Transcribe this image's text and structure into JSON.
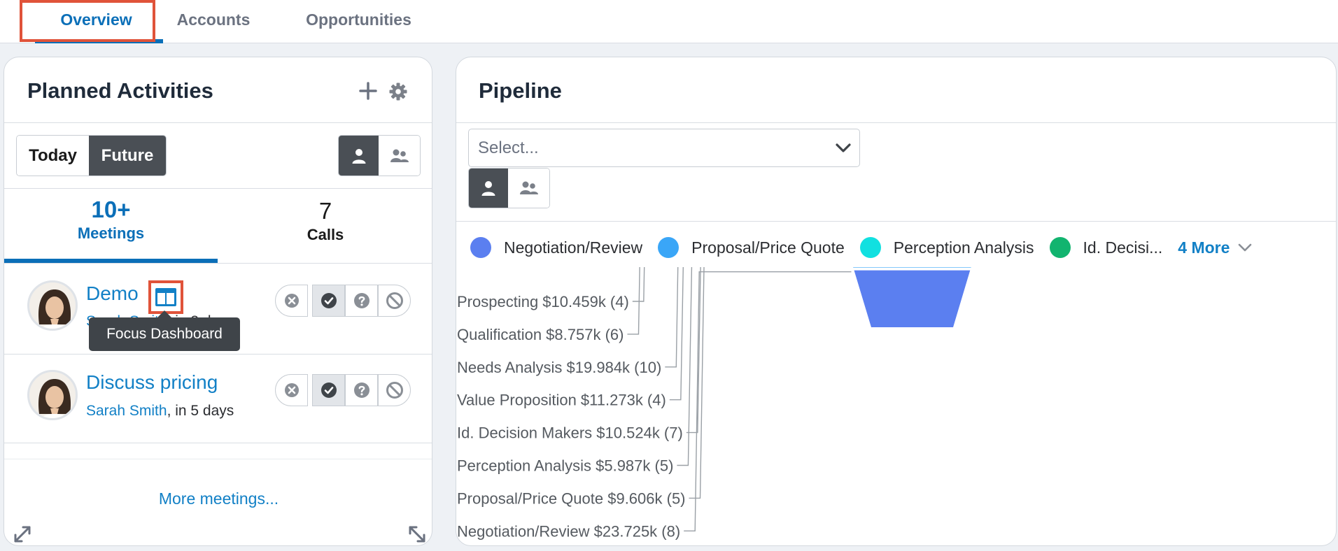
{
  "tabs": [
    {
      "label": "Overview",
      "active": true
    },
    {
      "label": "Accounts",
      "active": false
    },
    {
      "label": "Opportunities",
      "active": false
    }
  ],
  "planned_activities": {
    "title": "Planned Activities",
    "add_icon": "plus-icon",
    "settings_icon": "gear-icon",
    "period_toggle": {
      "today": "Today",
      "future": "Future",
      "selected": "Future"
    },
    "user_toggle": {
      "me_icon": "user-icon",
      "team_icon": "team-icon",
      "selected": "me"
    },
    "count_tabs": [
      {
        "count": "10+",
        "label": "Meetings",
        "active": true
      },
      {
        "count": "7",
        "label": "Calls",
        "active": false
      }
    ],
    "activities": [
      {
        "title": "Demo",
        "assignee": "Sarah Smith",
        "due": ", in 3 days",
        "status": "held"
      },
      {
        "title": "Discuss pricing",
        "assignee": "Sarah Smith",
        "due": ", in 5 days",
        "status": "held"
      }
    ],
    "tooltip": "Focus Dashboard",
    "more_link": "More meetings..."
  },
  "pipeline": {
    "title": "Pipeline",
    "select_placeholder": "Select...",
    "user_toggle": {
      "selected": "me"
    },
    "legend": [
      {
        "name": "Negotiation/Review",
        "color": "#5b7ff0"
      },
      {
        "name": "Proposal/Price Quote",
        "color": "#3aa6f7"
      },
      {
        "name": "Perception Analysis",
        "color": "#11e0e0"
      },
      {
        "name": "Id. Decisi...",
        "color": "#12b46f"
      }
    ],
    "legend_more": "4 More"
  },
  "chart_data": {
    "type": "funnel",
    "stages": [
      {
        "name": "Prospecting",
        "amount": "$10.459k",
        "count": 4,
        "value": 10.459,
        "label": "Prospecting $10.459k (4)",
        "color": "#f53d55"
      },
      {
        "name": "Qualification",
        "amount": "$8.757k",
        "count": 6,
        "value": 8.757,
        "label": "Qualification $8.757k (6)",
        "color": "#ff9642"
      },
      {
        "name": "Needs Analysis",
        "amount": "$19.984k",
        "count": 10,
        "value": 19.984,
        "label": "Needs Analysis $19.984k (10)",
        "color": "#ffd22e"
      },
      {
        "name": "Value Proposition",
        "amount": "$11.273k",
        "count": 4,
        "value": 11.273,
        "label": "Value Proposition $11.273k (4)",
        "color": "#6ede45"
      },
      {
        "name": "Id. Decision Makers",
        "amount": "$10.524k",
        "count": 7,
        "value": 10.524,
        "label": "Id. Decision Makers $10.524k (7)",
        "color": "#12b46f"
      },
      {
        "name": "Perception Analysis",
        "amount": "$5.987k",
        "count": 5,
        "value": 5.987,
        "label": "Perception Analysis $5.987k (5)",
        "color": "#11e0e0"
      },
      {
        "name": "Proposal/Price Quote",
        "amount": "$9.606k",
        "count": 5,
        "value": 9.606,
        "label": "Proposal/Price Quote $9.606k (5)",
        "color": "#3aa6f7"
      },
      {
        "name": "Negotiation/Review",
        "amount": "$23.725k",
        "count": 8,
        "value": 23.725,
        "label": "Negotiation/Review $23.725k (8)",
        "color": "#5b7ff0"
      }
    ]
  }
}
